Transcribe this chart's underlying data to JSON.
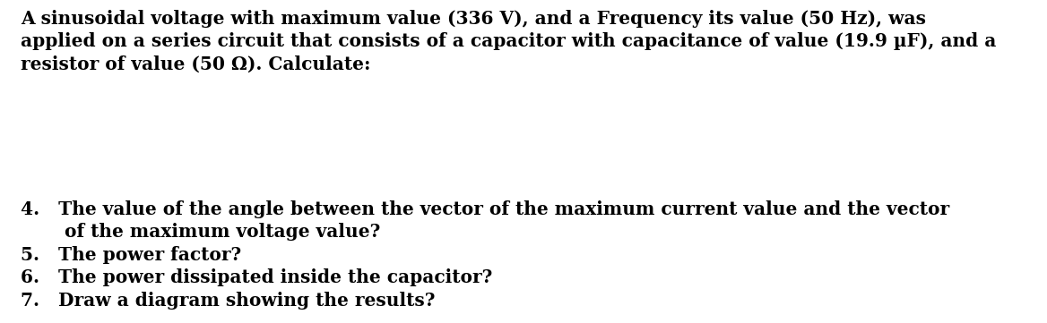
{
  "background_color": "#ffffff",
  "text_color": "#000000",
  "font_weight": "bold",
  "font_family": "DejaVu Serif",
  "font_size": 14.5,
  "paragraph1_lines": [
    "A sinusoidal voltage with maximum value (336 V), and a Frequency its value (50 Hz), was",
    "applied on a series circuit that consists of a capacitor with capacitance of value (19.9 µF), and a",
    "resistor of value (50 Ω). Calculate:"
  ],
  "item4_line1": "4.   The value of the angle between the vector of the maximum current value and the vector",
  "item4_line2": "       of the maximum voltage value?",
  "item5": "5.   The power factor?",
  "item6": "6.   The power dissipated inside the capacitor?",
  "item7": "7.   Draw a diagram showing the results?"
}
